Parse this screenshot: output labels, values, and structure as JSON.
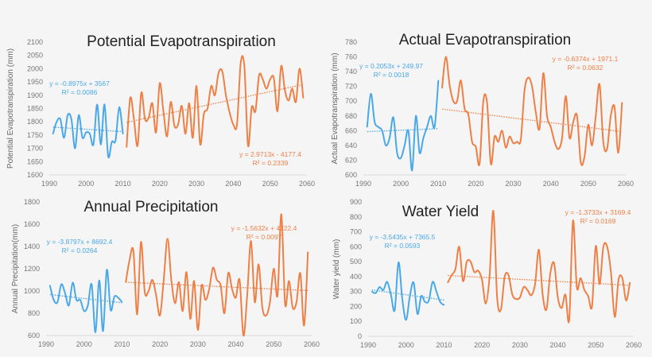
{
  "colors": {
    "historical": "#4aa8e8",
    "future": "#ee7f45",
    "background": "#f5f5f5"
  },
  "chart_data": [
    {
      "type": "line",
      "title": "Potential Evapotranspiration",
      "ylabel": "Potential Evapotranspiration (mm)",
      "xlabel": "",
      "xlim": [
        1990,
        2060
      ],
      "ylim": [
        1600,
        2100
      ],
      "xticks": [
        "1990",
        "2000",
        "2010",
        "2020",
        "2030",
        "2040",
        "2050",
        "2060"
      ],
      "yticks": [
        "1600",
        "1650",
        "1700",
        "1750",
        "1800",
        "1850",
        "1900",
        "1950",
        "2000",
        "2050",
        "2100"
      ],
      "grid": false,
      "series": [
        {
          "x_start": 1991,
          "values": [
            1755,
            1800,
            1810,
            1740,
            1825,
            1810,
            1700,
            1825,
            1740,
            1760,
            1755,
            1715,
            1865,
            1715,
            1865,
            1670,
            1725,
            1730,
            1855,
            1755
          ],
          "trend": {
            "slope": -0.8975,
            "intercept": 3567,
            "label": "y = -0.8975x + 3567",
            "r2_label": "R² = 0.0086"
          }
        },
        {
          "x_start": 2011,
          "values": [
            1705,
            1890,
            1810,
            1710,
            1910,
            1810,
            1815,
            1870,
            1760,
            1945,
            1840,
            1745,
            1875,
            1785,
            1790,
            1860,
            1755,
            1870,
            1740,
            1935,
            1715,
            1830,
            1850,
            1935,
            1900,
            1985,
            1990,
            1900,
            1835,
            1790,
            1790,
            2020,
            2010,
            1710,
            1855,
            1840,
            1975,
            1960,
            1925,
            1960,
            1965,
            1840,
            2010,
            1920,
            1880,
            1925,
            1875,
            2000,
            1890
          ],
          "trend": {
            "slope": 2.9713,
            "intercept": -4177.4,
            "label": "y = 2.9713x - 4177.4",
            "r2_label": "R² = 0.2339"
          }
        }
      ]
    },
    {
      "type": "line",
      "title": "Actual Evapotranspiration",
      "ylabel": "Actual Evapotranspiration (mm)",
      "xlabel": "",
      "xlim": [
        1990,
        2060
      ],
      "ylim": [
        600,
        780
      ],
      "xticks": [
        "1990",
        "2000",
        "2010",
        "2020",
        "2030",
        "2040",
        "2050",
        "2060"
      ],
      "yticks": [
        "600",
        "620",
        "640",
        "660",
        "680",
        "700",
        "720",
        "740",
        "760",
        "780"
      ],
      "grid": false,
      "series": [
        {
          "x_start": 1991,
          "values": [
            665,
            710,
            672,
            665,
            660,
            640,
            650,
            678,
            630,
            623,
            640,
            660,
            606,
            680,
            630,
            650,
            665,
            680,
            665,
            728
          ],
          "trend": {
            "slope": 0.2053,
            "intercept": 249.97,
            "label": "y = 0.2053x + 249.97",
            "r2_label": "R² = 0.0018"
          }
        },
        {
          "x_start": 2011,
          "values": [
            718,
            760,
            722,
            700,
            700,
            728,
            690,
            682,
            645,
            638,
            615,
            700,
            698,
            615,
            652,
            645,
            660,
            637,
            652,
            643,
            645,
            648,
            715,
            732,
            720,
            685,
            663,
            738,
            680,
            665,
            645,
            635,
            650,
            707,
            650,
            672,
            680,
            617,
            625,
            668,
            640,
            680,
            723,
            645,
            635,
            680,
            692,
            630,
            698
          ],
          "trend": {
            "slope": -0.6374,
            "intercept": 1971.1,
            "label": "y = -0.6374x + 1971.1",
            "r2_label": "R² = 0.0632"
          }
        }
      ]
    },
    {
      "type": "line",
      "title": "Annual Precipitation",
      "ylabel": "Annual Precipitation(mm)",
      "xlabel": "",
      "xlim": [
        1990,
        2060
      ],
      "ylim": [
        600,
        1800
      ],
      "xticks": [
        "1990",
        "2000",
        "2010",
        "2020",
        "2030",
        "2040",
        "2050",
        "2060"
      ],
      "yticks": [
        "600",
        "800",
        "1000",
        "1200",
        "1400",
        "1600",
        "1800"
      ],
      "grid": false,
      "series": [
        {
          "x_start": 1991,
          "values": [
            1050,
            920,
            900,
            1060,
            980,
            870,
            1075,
            920,
            920,
            820,
            870,
            1060,
            630,
            1095,
            640,
            1190,
            830,
            950,
            940,
            900
          ],
          "trend": {
            "slope": -3.8797,
            "intercept": 8692.4,
            "label": "y = -3.8797x + 8692.4",
            "r2_label": "R² = 0.0264"
          }
        },
        {
          "x_start": 2011,
          "values": [
            1080,
            1280,
            1360,
            790,
            1440,
            990,
            1000,
            1100,
            960,
            780,
            1100,
            1470,
            1100,
            890,
            1080,
            820,
            1170,
            750,
            1090,
            650,
            1050,
            920,
            1020,
            1210,
            1100,
            1050,
            800,
            1160,
            1020,
            940,
            1100,
            600,
            960,
            1450,
            900,
            1240,
            850,
            780,
            900,
            1200,
            960,
            1690,
            880,
            1090,
            850,
            900,
            1160,
            690,
            1350
          ],
          "trend": {
            "slope": -1.5632,
            "intercept": 4222.4,
            "label": "y = -1.5632x + 4222.4",
            "r2_label": "R² = 0.0097"
          }
        }
      ]
    },
    {
      "type": "line",
      "title": "Water Yield",
      "ylabel": "Water yield (mm)",
      "xlabel": "",
      "xlim": [
        1990,
        2060
      ],
      "ylim": [
        0,
        900
      ],
      "xticks": [
        "1990",
        "2000",
        "2010",
        "2020",
        "2030",
        "2040",
        "2050",
        "2060"
      ],
      "yticks": [
        "0",
        "100",
        "200",
        "300",
        "400",
        "500",
        "600",
        "700",
        "800",
        "900"
      ],
      "grid": false,
      "series": [
        {
          "x_start": 1991,
          "values": [
            300,
            290,
            330,
            310,
            365,
            280,
            175,
            495,
            250,
            110,
            270,
            360,
            150,
            270,
            230,
            240,
            365,
            300,
            230,
            210
          ],
          "trend": {
            "slope": -3.5435,
            "intercept": 7365.5,
            "label": "y = -3.5435x + 7365.5",
            "r2_label": "R² = 0.0593"
          }
        },
        {
          "x_start": 2011,
          "values": [
            360,
            410,
            450,
            600,
            370,
            500,
            500,
            430,
            440,
            380,
            220,
            400,
            840,
            260,
            180,
            400,
            410,
            280,
            250,
            260,
            330,
            310,
            275,
            350,
            580,
            280,
            180,
            420,
            490,
            260,
            190,
            280,
            110,
            775,
            330,
            390,
            310,
            270,
            200,
            605,
            350,
            600,
            600,
            430,
            130,
            380,
            390,
            240,
            360
          ],
          "trend": {
            "slope": -1.3733,
            "intercept": 3169.4,
            "label": "y = -1.3733x + 3169.4",
            "r2_label": "R² = 0.0169"
          }
        }
      ]
    }
  ]
}
